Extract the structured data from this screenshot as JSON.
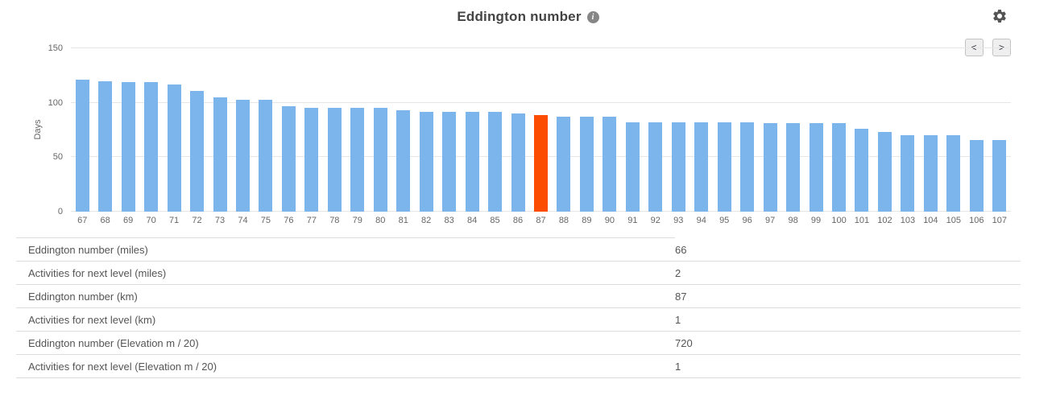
{
  "header": {
    "title": "Eddington number",
    "info_glyph": "i"
  },
  "nav": {
    "prev_label": "<",
    "next_label": ">"
  },
  "chart_data": {
    "type": "bar",
    "title": "Eddington number",
    "xlabel": "",
    "ylabel": "Days",
    "ylim": [
      0,
      150
    ],
    "yticks": [
      0,
      50,
      100,
      150
    ],
    "grid": true,
    "legend": "none",
    "categories": [
      67,
      68,
      69,
      70,
      71,
      72,
      73,
      74,
      75,
      76,
      77,
      78,
      79,
      80,
      81,
      82,
      83,
      84,
      85,
      86,
      87,
      88,
      89,
      90,
      91,
      92,
      93,
      94,
      95,
      96,
      97,
      98,
      99,
      100,
      101,
      102,
      103,
      104,
      105,
      106,
      107
    ],
    "values": [
      121,
      120,
      119,
      119,
      117,
      111,
      105,
      103,
      103,
      97,
      95,
      95,
      95,
      95,
      93,
      92,
      92,
      92,
      92,
      90,
      89,
      87,
      87,
      87,
      82,
      82,
      82,
      82,
      82,
      82,
      81,
      81,
      81,
      81,
      76,
      73,
      70,
      70,
      70,
      66,
      66
    ],
    "highlight_category": 87,
    "bar_color": "#7cb5ec",
    "highlight_color": "#fc4c02"
  },
  "table": {
    "rows": [
      {
        "label": "Eddington number (miles)",
        "value": "66"
      },
      {
        "label": "Activities for next level (miles)",
        "value": "2"
      },
      {
        "label": "Eddington number (km)",
        "value": "87"
      },
      {
        "label": "Activities for next level (km)",
        "value": "1"
      },
      {
        "label": "Eddington number (Elevation m / 20)",
        "value": "720"
      },
      {
        "label": "Activities for next level (Elevation m / 20)",
        "value": "1"
      }
    ]
  }
}
